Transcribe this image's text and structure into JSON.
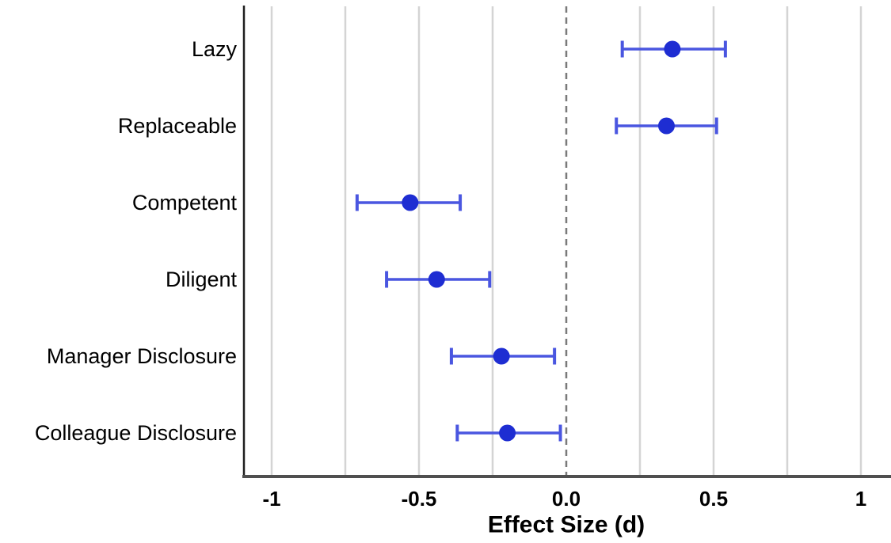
{
  "figure": {
    "background": "#ffffff"
  },
  "chart_data": {
    "type": "scatter",
    "variant": "forest-plot-dot-whisker",
    "title": "",
    "xlabel": "Effect Size (d)",
    "ylabel": "",
    "xlim": [
      -1.1,
      1.1
    ],
    "grid": true,
    "legend": false,
    "x_ticks": [
      {
        "value": -1,
        "label": "-1"
      },
      {
        "value": -0.5,
        "label": "-0.5"
      },
      {
        "value": 0,
        "label": "0.0"
      },
      {
        "value": 0.5,
        "label": "0.5"
      },
      {
        "value": 1,
        "label": "1"
      }
    ],
    "gridline_values": [
      -1,
      -0.75,
      -0.5,
      -0.25,
      0.25,
      0.5,
      0.75,
      1
    ],
    "zero_line_value": 0,
    "categories": [
      "Lazy",
      "Replaceable",
      "Competent",
      "Diligent",
      "Manager Disclosure",
      "Colleague Disclosure"
    ],
    "series": [
      {
        "name": "effect-size-with-95ci",
        "points": [
          {
            "category": "Lazy",
            "estimate": 0.36,
            "ci_low": 0.19,
            "ci_high": 0.54
          },
          {
            "category": "Replaceable",
            "estimate": 0.34,
            "ci_low": 0.17,
            "ci_high": 0.51
          },
          {
            "category": "Competent",
            "estimate": -0.53,
            "ci_low": -0.71,
            "ci_high": -0.36
          },
          {
            "category": "Diligent",
            "estimate": -0.44,
            "ci_low": -0.61,
            "ci_high": -0.26
          },
          {
            "category": "Manager Disclosure",
            "estimate": -0.22,
            "ci_low": -0.39,
            "ci_high": -0.04
          },
          {
            "category": "Colleague Disclosure",
            "estimate": -0.2,
            "ci_low": -0.37,
            "ci_high": -0.02
          }
        ]
      }
    ],
    "colors": {
      "point": "#1e2dd2",
      "error_bar": "#4a56e0",
      "gridline": "#d4d4d4",
      "zero_line": "#7a7a7a",
      "x_axis": "#4f4f4f",
      "y_axis": "#1f1f1f",
      "text": "#000000"
    }
  }
}
